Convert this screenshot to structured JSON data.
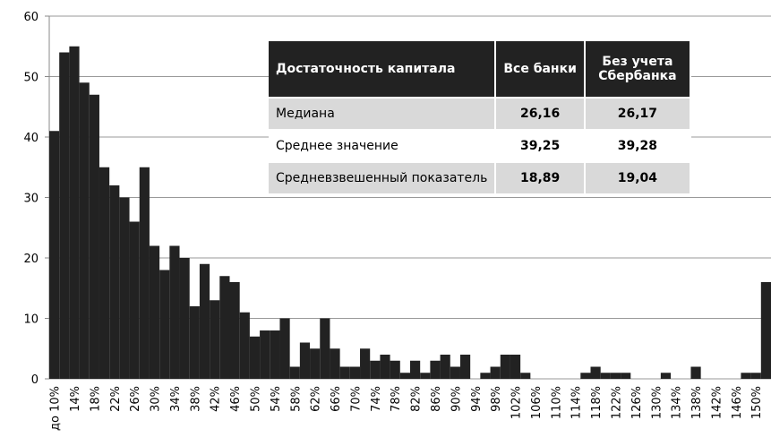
{
  "chart_data": {
    "type": "bar",
    "color": "#222222",
    "grid": true,
    "categories": [
      "до 10%",
      null,
      "14%",
      null,
      "18%",
      null,
      "22%",
      null,
      "26%",
      null,
      "30%",
      null,
      "34%",
      null,
      "38%",
      null,
      "42%",
      null,
      "46%",
      null,
      "50%",
      null,
      "54%",
      null,
      "58%",
      null,
      "62%",
      null,
      "66%",
      null,
      "70%",
      null,
      "74%",
      null,
      "78%",
      null,
      "82%",
      null,
      "86%",
      null,
      "90%",
      null,
      "94%",
      null,
      "98%",
      null,
      "102%",
      null,
      "106%",
      null,
      "110%",
      null,
      "114%",
      null,
      "118%",
      null,
      "122%",
      null,
      "126%",
      null,
      "130%",
      null,
      "134%",
      null,
      "138%",
      null,
      "142%",
      null,
      "146%",
      null,
      "150%",
      null
    ],
    "values": [
      41,
      54,
      55,
      49,
      47,
      35,
      32,
      30,
      26,
      35,
      22,
      18,
      22,
      20,
      12,
      19,
      13,
      17,
      16,
      11,
      7,
      8,
      8,
      10,
      2,
      6,
      5,
      10,
      5,
      2,
      2,
      5,
      3,
      4,
      3,
      1,
      3,
      1,
      3,
      4,
      2,
      4,
      0,
      1,
      2,
      4,
      4,
      1,
      0,
      0,
      0,
      0,
      0,
      1,
      2,
      1,
      1,
      1,
      0,
      0,
      0,
      1,
      0,
      0,
      2,
      0,
      0,
      0,
      0,
      1,
      1,
      16
    ],
    "ylim": [
      0,
      60
    ],
    "yticks": [
      0,
      10,
      20,
      30,
      40,
      50,
      60
    ]
  },
  "table": {
    "header": [
      "Достаточность капитала",
      "Все банки",
      "Без учета Сбербанка"
    ],
    "rows": [
      [
        "Медиана",
        "26,16",
        "26,17"
      ],
      [
        "Среднее значение",
        "39,25",
        "39,28"
      ],
      [
        "Средневзвешенный показатель",
        "18,89",
        "19,04"
      ]
    ]
  }
}
